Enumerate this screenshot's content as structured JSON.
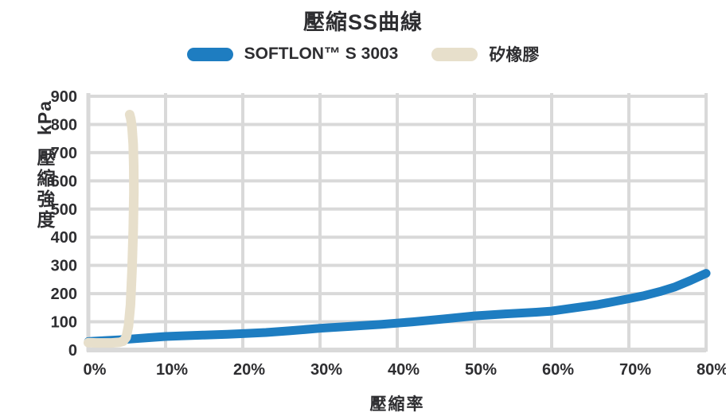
{
  "chart": {
    "title": "壓縮SS曲線",
    "x_axis_title": "壓縮率",
    "y_axis_unit": "kPa",
    "y_axis_name": "壓縮強度"
  },
  "chart_data": {
    "type": "line",
    "title": "壓縮SS曲線",
    "xlabel": "壓縮率",
    "ylabel": "壓縮強度 (kPa)",
    "xlim": [
      0,
      80
    ],
    "ylim": [
      0,
      900
    ],
    "x_tick_labels": [
      "0%",
      "10%",
      "20%",
      "30%",
      "40%",
      "50%",
      "60%",
      "70%",
      "80%"
    ],
    "x_tick_values": [
      0,
      10,
      20,
      30,
      40,
      50,
      60,
      70,
      80
    ],
    "y_tick_values": [
      900,
      800,
      700,
      600,
      500,
      400,
      300,
      200,
      100,
      0
    ],
    "grid": true,
    "legend_position": "top",
    "palette": {
      "grid": "#d9d9d9",
      "text": "#2e2e31",
      "background": "#ffffff"
    },
    "series": [
      {
        "name": "SOFTLON™ S 3003",
        "color": "#1e7dc1",
        "stroke_width": 11,
        "points": [
          [
            0,
            30
          ],
          [
            2,
            33
          ],
          [
            4,
            36
          ],
          [
            6,
            40
          ],
          [
            8,
            44
          ],
          [
            10,
            48
          ],
          [
            12,
            50
          ],
          [
            15,
            53
          ],
          [
            18,
            56
          ],
          [
            20,
            58
          ],
          [
            23,
            62
          ],
          [
            26,
            68
          ],
          [
            30,
            77
          ],
          [
            34,
            84
          ],
          [
            38,
            91
          ],
          [
            42,
            100
          ],
          [
            46,
            110
          ],
          [
            50,
            121
          ],
          [
            54,
            128
          ],
          [
            58,
            134
          ],
          [
            60,
            138
          ],
          [
            62,
            146
          ],
          [
            66,
            161
          ],
          [
            70,
            182
          ],
          [
            72,
            193
          ],
          [
            74,
            207
          ],
          [
            76,
            224
          ],
          [
            78,
            247
          ],
          [
            80,
            272
          ]
        ]
      },
      {
        "name": "矽橡膠",
        "color": "#e7dfcb",
        "stroke_width": 12,
        "points": [
          [
            0,
            26
          ],
          [
            1,
            25
          ],
          [
            2,
            25
          ],
          [
            3,
            25
          ],
          [
            4,
            27
          ],
          [
            4.5,
            31
          ],
          [
            4.9,
            45
          ],
          [
            5.2,
            85
          ],
          [
            5.45,
            160
          ],
          [
            5.65,
            280
          ],
          [
            5.8,
            420
          ],
          [
            5.9,
            560
          ],
          [
            5.88,
            650
          ],
          [
            5.8,
            730
          ],
          [
            5.65,
            790
          ],
          [
            5.5,
            820
          ],
          [
            5.35,
            835
          ]
        ]
      }
    ]
  }
}
